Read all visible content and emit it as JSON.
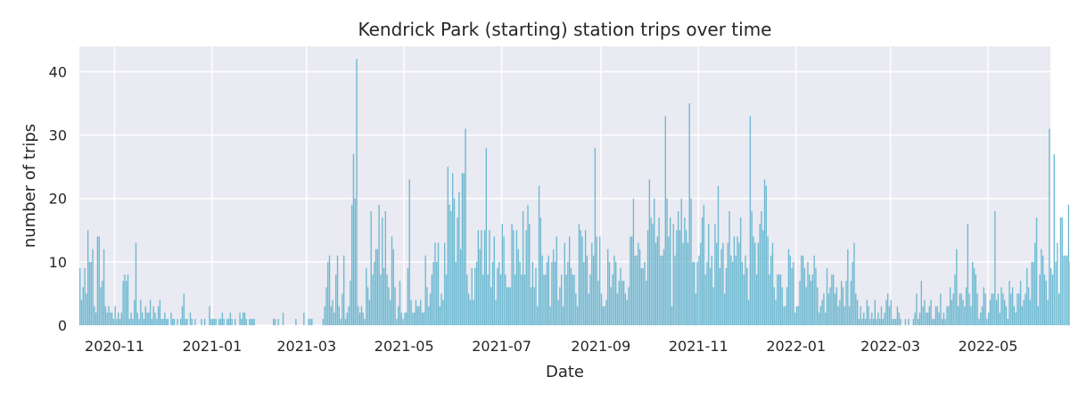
{
  "chart_data": {
    "type": "bar",
    "title": "Kendrick Park (starting) station trips over time",
    "xlabel": "Date",
    "ylabel": "number of trips",
    "x_start": "2020-10-10",
    "x_end": "2022-06-09",
    "ylim": [
      0,
      44
    ],
    "y_ticks": [
      0,
      10,
      20,
      30,
      40
    ],
    "x_ticks": [
      {
        "date": "2020-11-01",
        "label": "2020-11"
      },
      {
        "date": "2021-01-01",
        "label": "2021-01"
      },
      {
        "date": "2021-03-01",
        "label": "2021-03"
      },
      {
        "date": "2021-05-01",
        "label": "2021-05"
      },
      {
        "date": "2021-07-01",
        "label": "2021-07"
      },
      {
        "date": "2021-09-01",
        "label": "2021-09"
      },
      {
        "date": "2021-11-01",
        "label": "2021-11"
      },
      {
        "date": "2022-01-01",
        "label": "2022-01"
      },
      {
        "date": "2022-03-01",
        "label": "2022-03"
      },
      {
        "date": "2022-05-01",
        "label": "2022-05"
      }
    ],
    "grid": true,
    "bar_color": "#6bb8d0",
    "background_color": "#eaeaf2",
    "series": [
      {
        "name": "trips",
        "start_date": "2020-10-10",
        "values": [
          9,
          4,
          6,
          9,
          5,
          15,
          10,
          10,
          12,
          3,
          2,
          14,
          14,
          6,
          7,
          12,
          3,
          2,
          3,
          2,
          2,
          1,
          3,
          1,
          2,
          1,
          2,
          7,
          8,
          7,
          8,
          1,
          2,
          1,
          4,
          13,
          2,
          1,
          4,
          2,
          1,
          3,
          2,
          2,
          4,
          1,
          3,
          2,
          1,
          3,
          4,
          1,
          1,
          2,
          1,
          1,
          0,
          2,
          1,
          1,
          0,
          1,
          0,
          1,
          3,
          5,
          1,
          1,
          0,
          2,
          1,
          0,
          1,
          0,
          0,
          0,
          1,
          0,
          1,
          0,
          0,
          3,
          1,
          1,
          1,
          1,
          0,
          1,
          1,
          2,
          1,
          0,
          1,
          1,
          2,
          1,
          0,
          1,
          0,
          0,
          2,
          1,
          2,
          2,
          1,
          0,
          1,
          1,
          1,
          1,
          0,
          0,
          0,
          0,
          0,
          0,
          0,
          0,
          0,
          0,
          0,
          1,
          1,
          0,
          1,
          0,
          0,
          2,
          0,
          0,
          0,
          0,
          0,
          0,
          0,
          1,
          0,
          0,
          0,
          0,
          2,
          0,
          0,
          1,
          1,
          1,
          0,
          0,
          0,
          0,
          0,
          0,
          1,
          3,
          6,
          10,
          11,
          3,
          4,
          2,
          8,
          11,
          3,
          1,
          5,
          11,
          1,
          2,
          3,
          7,
          19,
          27,
          20,
          42,
          3,
          2,
          3,
          2,
          1,
          9,
          6,
          4,
          18,
          8,
          10,
          12,
          12,
          19,
          8,
          17,
          9,
          18,
          8,
          6,
          4,
          14,
          12,
          6,
          1,
          3,
          7,
          2,
          1,
          2,
          2,
          9,
          23,
          4,
          2,
          2,
          4,
          3,
          3,
          4,
          2,
          2,
          11,
          6,
          3,
          5,
          8,
          10,
          13,
          10,
          13,
          3,
          5,
          4,
          13,
          8,
          25,
          19,
          18,
          24,
          20,
          10,
          17,
          21,
          12,
          24,
          24,
          31,
          8,
          5,
          4,
          9,
          4,
          9,
          10,
          15,
          12,
          15,
          8,
          15,
          28,
          8,
          15,
          6,
          10,
          14,
          4,
          9,
          10,
          8,
          16,
          14,
          8,
          6,
          6,
          6,
          16,
          15,
          8,
          15,
          12,
          10,
          8,
          18,
          8,
          15,
          19,
          16,
          6,
          10,
          6,
          9,
          3,
          22,
          17,
          11,
          8,
          8,
          10,
          11,
          3,
          10,
          12,
          10,
          14,
          4,
          6,
          8,
          3,
          13,
          8,
          10,
          14,
          9,
          8,
          8,
          5,
          3,
          16,
          15,
          14,
          10,
          15,
          11,
          5,
          8,
          13,
          11,
          28,
          14,
          7,
          14,
          5,
          3,
          3,
          4,
          12,
          10,
          6,
          8,
          11,
          10,
          5,
          7,
          9,
          7,
          7,
          5,
          4,
          6,
          14,
          14,
          20,
          11,
          11,
          13,
          12,
          9,
          9,
          10,
          7,
          15,
          23,
          17,
          16,
          20,
          13,
          14,
          17,
          11,
          11,
          12,
          33,
          20,
          14,
          17,
          3,
          16,
          11,
          15,
          18,
          15,
          20,
          13,
          17,
          15,
          13,
          35,
          20,
          10,
          10,
          5,
          10,
          11,
          13,
          17,
          19,
          8,
          10,
          16,
          9,
          11,
          6,
          16,
          13,
          22,
          9,
          12,
          13,
          5,
          9,
          13,
          18,
          11,
          10,
          14,
          11,
          14,
          13,
          17,
          10,
          8,
          11,
          9,
          4,
          33,
          18,
          14,
          13,
          8,
          13,
          16,
          18,
          15,
          23,
          22,
          14,
          8,
          11,
          13,
          6,
          4,
          8,
          8,
          8,
          6,
          3,
          3,
          6,
          12,
          11,
          9,
          10,
          2,
          3,
          3,
          7,
          11,
          11,
          9,
          6,
          10,
          8,
          7,
          8,
          11,
          9,
          6,
          2,
          3,
          4,
          5,
          2,
          9,
          5,
          6,
          8,
          8,
          5,
          6,
          3,
          4,
          7,
          6,
          3,
          7,
          12,
          3,
          7,
          10,
          13,
          5,
          4,
          1,
          3,
          1,
          2,
          1,
          4,
          3,
          1,
          2,
          1,
          4,
          1,
          2,
          1,
          3,
          1,
          2,
          4,
          5,
          3,
          4,
          1,
          1,
          1,
          3,
          2,
          1,
          0,
          0,
          1,
          0,
          1,
          0,
          0,
          1,
          2,
          5,
          1,
          2,
          7,
          3,
          4,
          2,
          2,
          3,
          4,
          1,
          1,
          3,
          3,
          2,
          5,
          1,
          2,
          1,
          3,
          3,
          6,
          4,
          5,
          8,
          12,
          3,
          5,
          5,
          4,
          3,
          6,
          16,
          5,
          3,
          10,
          9,
          8,
          5,
          1,
          2,
          3,
          6,
          5,
          1,
          2,
          4,
          5,
          5,
          18,
          4,
          5,
          2,
          6,
          5,
          4,
          3,
          1,
          7,
          5,
          6,
          3,
          2,
          5,
          5,
          7,
          3,
          4,
          5,
          9,
          6,
          4,
          10,
          10,
          13,
          17,
          3,
          8,
          12,
          11,
          8,
          7,
          4,
          31,
          9,
          8,
          27,
          10,
          13,
          5,
          17,
          17,
          11,
          11,
          11,
          19,
          10,
          9,
          8,
          15,
          14,
          11,
          6,
          14,
          19,
          12,
          5,
          5,
          7,
          14,
          10,
          8,
          6,
          12,
          7,
          4,
          5,
          5,
          12,
          6,
          10,
          6,
          11,
          31,
          15,
          13,
          16,
          15,
          20,
          9,
          15,
          14,
          32,
          17,
          8,
          26,
          18,
          12,
          20,
          9,
          7,
          9,
          7,
          1,
          9,
          4,
          2,
          6,
          10,
          16,
          1,
          3,
          8,
          4,
          2,
          7,
          8,
          8,
          2,
          6,
          1
        ]
      }
    ]
  }
}
